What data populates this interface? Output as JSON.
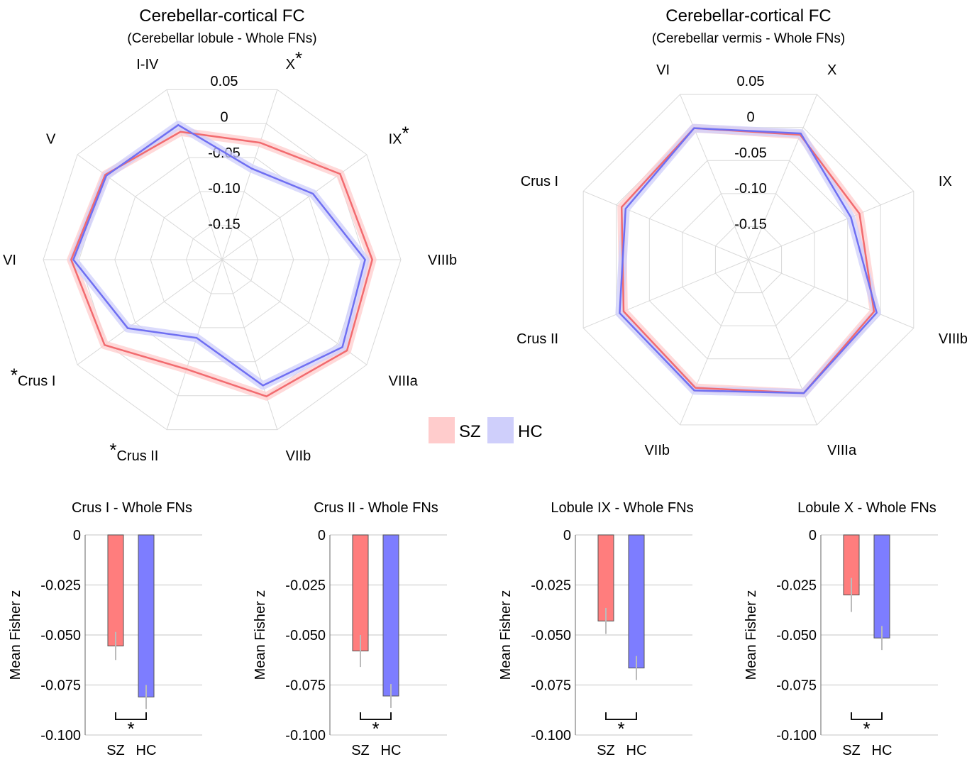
{
  "colors": {
    "sz_line": "#f26b6f",
    "sz_band": "#ffcccc",
    "hc_line": "#6f6ff2",
    "hc_band": "#cfcffb",
    "sz_bar": "#ff7d7d",
    "hc_bar": "#7d7dff",
    "grid": "#d9d9d9",
    "error_bar": "#bbbbbb"
  },
  "legend": {
    "sz": "SZ",
    "hc": "HC"
  },
  "chart_data": [
    {
      "type": "radar",
      "title": "Cerebellar-cortical FC",
      "subtitle": "(Cerebellar lobule - Whole FNs)",
      "axes": [
        "I-IV",
        "X",
        "IX",
        "VIIIb",
        "VIIIa",
        "VIIb",
        "Crus II",
        "Crus I",
        "VI",
        "V"
      ],
      "significant_axes": [
        "X",
        "IX",
        "Crus II",
        "Crus I"
      ],
      "significance_marker": "*",
      "radial_range": [
        -0.2,
        0.05
      ],
      "radial_ticks": [
        "0.05",
        "0",
        "-0.05",
        "-0.10",
        "-0.15"
      ],
      "series": [
        {
          "name": "SZ",
          "values": [
            -0.012,
            -0.028,
            0.004,
            0.01,
            0.016,
            0.001,
            -0.039,
            0.003,
            0.011,
            0.002
          ]
        },
        {
          "name": "HC",
          "values": [
            -0.002,
            -0.066,
            -0.043,
            0.0,
            0.008,
            -0.015,
            -0.085,
            -0.037,
            0.008,
            0.0
          ]
        }
      ]
    },
    {
      "type": "radar",
      "title": "Cerebellar-cortical FC",
      "subtitle": "(Cerebellar vermis - Whole FNs)",
      "axes": [
        "VI",
        "X",
        "IX",
        "VIIIb",
        "VIIIa",
        "VIIb",
        "Crus II",
        "Crus I"
      ],
      "significant_axes": [],
      "radial_range": [
        -0.2,
        0.05
      ],
      "radial_ticks": [
        "0.05",
        "0",
        "-0.05",
        "-0.10",
        "-0.15"
      ],
      "series": [
        {
          "name": "SZ",
          "values": [
            -0.001,
            -0.011,
            -0.032,
            -0.01,
            0.002,
            -0.006,
            -0.011,
            -0.008
          ]
        },
        {
          "name": "HC",
          "values": [
            -0.001,
            -0.009,
            -0.045,
            -0.006,
            0.002,
            -0.002,
            -0.005,
            -0.014
          ]
        }
      ]
    },
    {
      "type": "bar",
      "title": "Crus I - Whole FNs",
      "ylabel": "Mean Fisher z",
      "categories": [
        "SZ",
        "HC"
      ],
      "values": [
        -0.0555,
        -0.081
      ],
      "errors": [
        0.007,
        0.006
      ],
      "ylim": [
        -0.1,
        0
      ],
      "yticks": [
        "0",
        "-0.025",
        "-0.050",
        "-0.075",
        "-0.100"
      ],
      "significance": "*"
    },
    {
      "type": "bar",
      "title": "Crus II - Whole FNs",
      "ylabel": "Mean Fisher z",
      "categories": [
        "SZ",
        "HC"
      ],
      "values": [
        -0.058,
        -0.0805
      ],
      "errors": [
        0.008,
        0.006
      ],
      "ylim": [
        -0.1,
        0
      ],
      "yticks": [
        "0",
        "-0.025",
        "-0.050",
        "-0.075",
        "-0.100"
      ],
      "significance": "*"
    },
    {
      "type": "bar",
      "title": "Lobule IX - Whole FNs",
      "ylabel": "Mean Fisher z",
      "categories": [
        "SZ",
        "HC"
      ],
      "values": [
        -0.043,
        -0.0665
      ],
      "errors": [
        0.0065,
        0.006
      ],
      "ylim": [
        -0.1,
        0
      ],
      "yticks": [
        "0",
        "-0.025",
        "-0.050",
        "-0.075",
        "-0.100"
      ],
      "significance": "*"
    },
    {
      "type": "bar",
      "title": "Lobule X - Whole FNs",
      "ylabel": "Mean Fisher z",
      "categories": [
        "SZ",
        "HC"
      ],
      "values": [
        -0.03,
        -0.0515
      ],
      "errors": [
        0.0085,
        0.006
      ],
      "ylim": [
        -0.1,
        0
      ],
      "yticks": [
        "0",
        "-0.025",
        "-0.050",
        "-0.075",
        "-0.100"
      ],
      "significance": "*"
    }
  ]
}
